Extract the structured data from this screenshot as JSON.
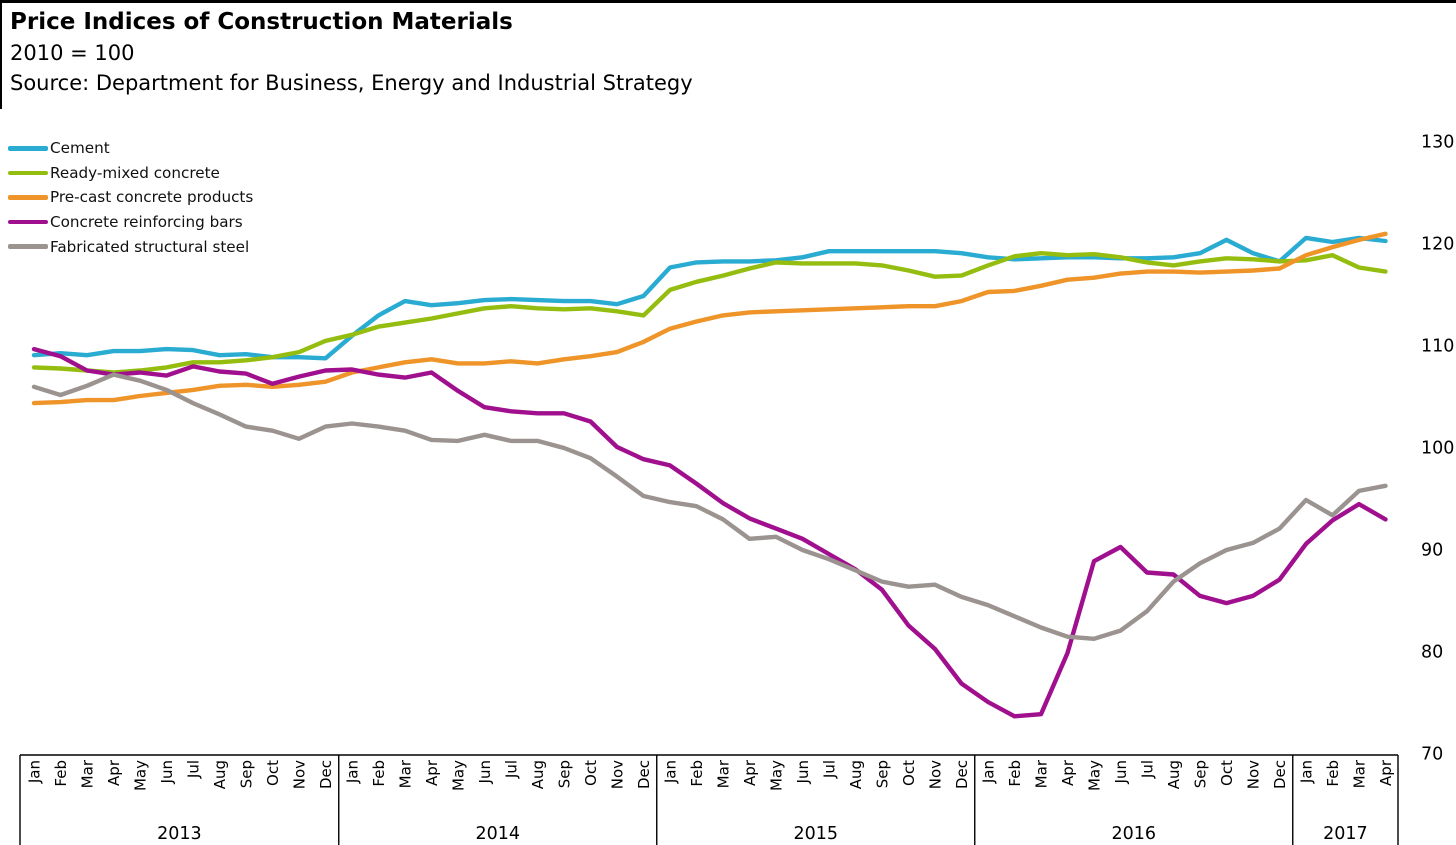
{
  "header": {
    "title": "Price Indices of Construction Materials",
    "subtitle": "2010 = 100",
    "source": "Source: Department for Business, Energy and Industrial Strategy"
  },
  "chart_data": {
    "type": "line",
    "title": "Price Indices of Construction Materials",
    "subtitle": "2010 = 100",
    "source": "Source: Department for Business, Energy and Industrial Strategy",
    "ylim": [
      70,
      130
    ],
    "yticks": [
      70,
      80,
      90,
      100,
      110,
      120,
      130
    ],
    "ytick_side": "right",
    "grid": false,
    "legend_position": "top-left",
    "x_axis": {
      "years": [
        {
          "label": "2013",
          "months": [
            "Jan",
            "Feb",
            "Mar",
            "Apr",
            "May",
            "Jun",
            "Jul",
            "Aug",
            "Sep",
            "Oct",
            "Nov",
            "Dec"
          ]
        },
        {
          "label": "2014",
          "months": [
            "Jan",
            "Feb",
            "Mar",
            "Apr",
            "May",
            "Jun",
            "Jul",
            "Aug",
            "Sep",
            "Oct",
            "Nov",
            "Dec"
          ]
        },
        {
          "label": "2015",
          "months": [
            "Jan",
            "Feb",
            "Mar",
            "Apr",
            "May",
            "Jun",
            "Jul",
            "Aug",
            "Sep",
            "Oct",
            "Nov",
            "Dec"
          ]
        },
        {
          "label": "2016",
          "months": [
            "Jan",
            "Feb",
            "Mar",
            "Apr",
            "May",
            "Jun",
            "Jul",
            "Aug",
            "Sep",
            "Oct",
            "Nov",
            "Dec"
          ]
        },
        {
          "label": "2017",
          "months": [
            "Jan",
            "Feb",
            "Mar",
            "Apr"
          ]
        }
      ]
    },
    "series": [
      {
        "name": "Cement",
        "color": "#29abd2",
        "values": [
          109.0,
          109.2,
          109.0,
          109.4,
          109.4,
          109.6,
          109.5,
          109.0,
          109.1,
          108.8,
          108.8,
          108.7,
          110.9,
          112.9,
          114.3,
          113.9,
          114.1,
          114.4,
          114.5,
          114.4,
          114.3,
          114.3,
          114.0,
          114.8,
          117.6,
          118.1,
          118.2,
          118.2,
          118.3,
          118.6,
          119.2,
          119.2,
          119.2,
          119.2,
          119.2,
          119.0,
          118.6,
          118.4,
          118.5,
          118.6,
          118.6,
          118.5,
          118.5,
          118.6,
          119.0,
          120.3,
          119.0,
          118.2,
          120.5,
          120.1,
          120.5,
          120.2
        ]
      },
      {
        "name": "Ready-mixed concrete",
        "color": "#94bd0f",
        "values": [
          107.8,
          107.7,
          107.5,
          107.3,
          107.5,
          107.8,
          108.3,
          108.3,
          108.5,
          108.8,
          109.3,
          110.4,
          111.0,
          111.8,
          112.2,
          112.6,
          113.1,
          113.6,
          113.8,
          113.6,
          113.5,
          113.6,
          113.3,
          112.9,
          115.4,
          116.2,
          116.8,
          117.5,
          118.1,
          118.0,
          118.0,
          118.0,
          117.8,
          117.3,
          116.7,
          116.8,
          117.8,
          118.7,
          119.0,
          118.8,
          118.9,
          118.6,
          118.1,
          117.8,
          118.2,
          118.5,
          118.4,
          118.2,
          118.3,
          118.8,
          117.6,
          117.2
        ]
      },
      {
        "name": "Pre-cast concrete products",
        "color": "#ee9428",
        "values": [
          104.3,
          104.4,
          104.6,
          104.6,
          105.0,
          105.3,
          105.6,
          106.0,
          106.1,
          105.9,
          106.1,
          106.4,
          107.3,
          107.8,
          108.3,
          108.6,
          108.2,
          108.2,
          108.4,
          108.2,
          108.6,
          108.9,
          109.3,
          110.3,
          111.6,
          112.3,
          112.9,
          113.2,
          113.3,
          113.4,
          113.5,
          113.6,
          113.7,
          113.8,
          113.8,
          114.3,
          115.2,
          115.3,
          115.8,
          116.4,
          116.6,
          117.0,
          117.2,
          117.2,
          117.1,
          117.2,
          117.3,
          117.5,
          118.8,
          119.6,
          120.3,
          120.9
        ]
      },
      {
        "name": "Concrete reinforcing bars",
        "color": "#a0108e",
        "values": [
          109.6,
          108.9,
          107.5,
          107.1,
          107.3,
          107.0,
          107.9,
          107.4,
          107.2,
          106.2,
          106.9,
          107.5,
          107.6,
          107.1,
          106.8,
          107.3,
          105.5,
          103.9,
          103.5,
          103.3,
          103.3,
          102.5,
          100.0,
          98.8,
          98.2,
          96.4,
          94.5,
          93.0,
          92.0,
          91.0,
          89.5,
          88.0,
          86.0,
          82.5,
          80.2,
          76.8,
          75.0,
          73.6,
          73.8,
          79.8,
          88.8,
          90.2,
          87.7,
          87.5,
          85.4,
          84.7,
          85.4,
          87.0,
          90.5,
          92.8,
          94.4,
          92.9
        ]
      },
      {
        "name": "Fabricated structural steel",
        "color": "#9b9390",
        "values": [
          105.9,
          105.1,
          106.0,
          107.1,
          106.5,
          105.6,
          104.3,
          103.2,
          102.0,
          101.6,
          100.8,
          102.0,
          102.3,
          102.0,
          101.6,
          100.7,
          100.6,
          101.2,
          100.6,
          100.6,
          99.9,
          98.9,
          97.1,
          95.2,
          94.6,
          94.2,
          92.9,
          91.0,
          91.2,
          89.9,
          89.0,
          87.9,
          86.8,
          86.3,
          86.5,
          85.3,
          84.5,
          83.4,
          82.3,
          81.4,
          81.2,
          82.0,
          83.9,
          86.8,
          88.6,
          89.9,
          90.6,
          92.0,
          94.8,
          93.3,
          95.7,
          96.2
        ]
      }
    ]
  }
}
